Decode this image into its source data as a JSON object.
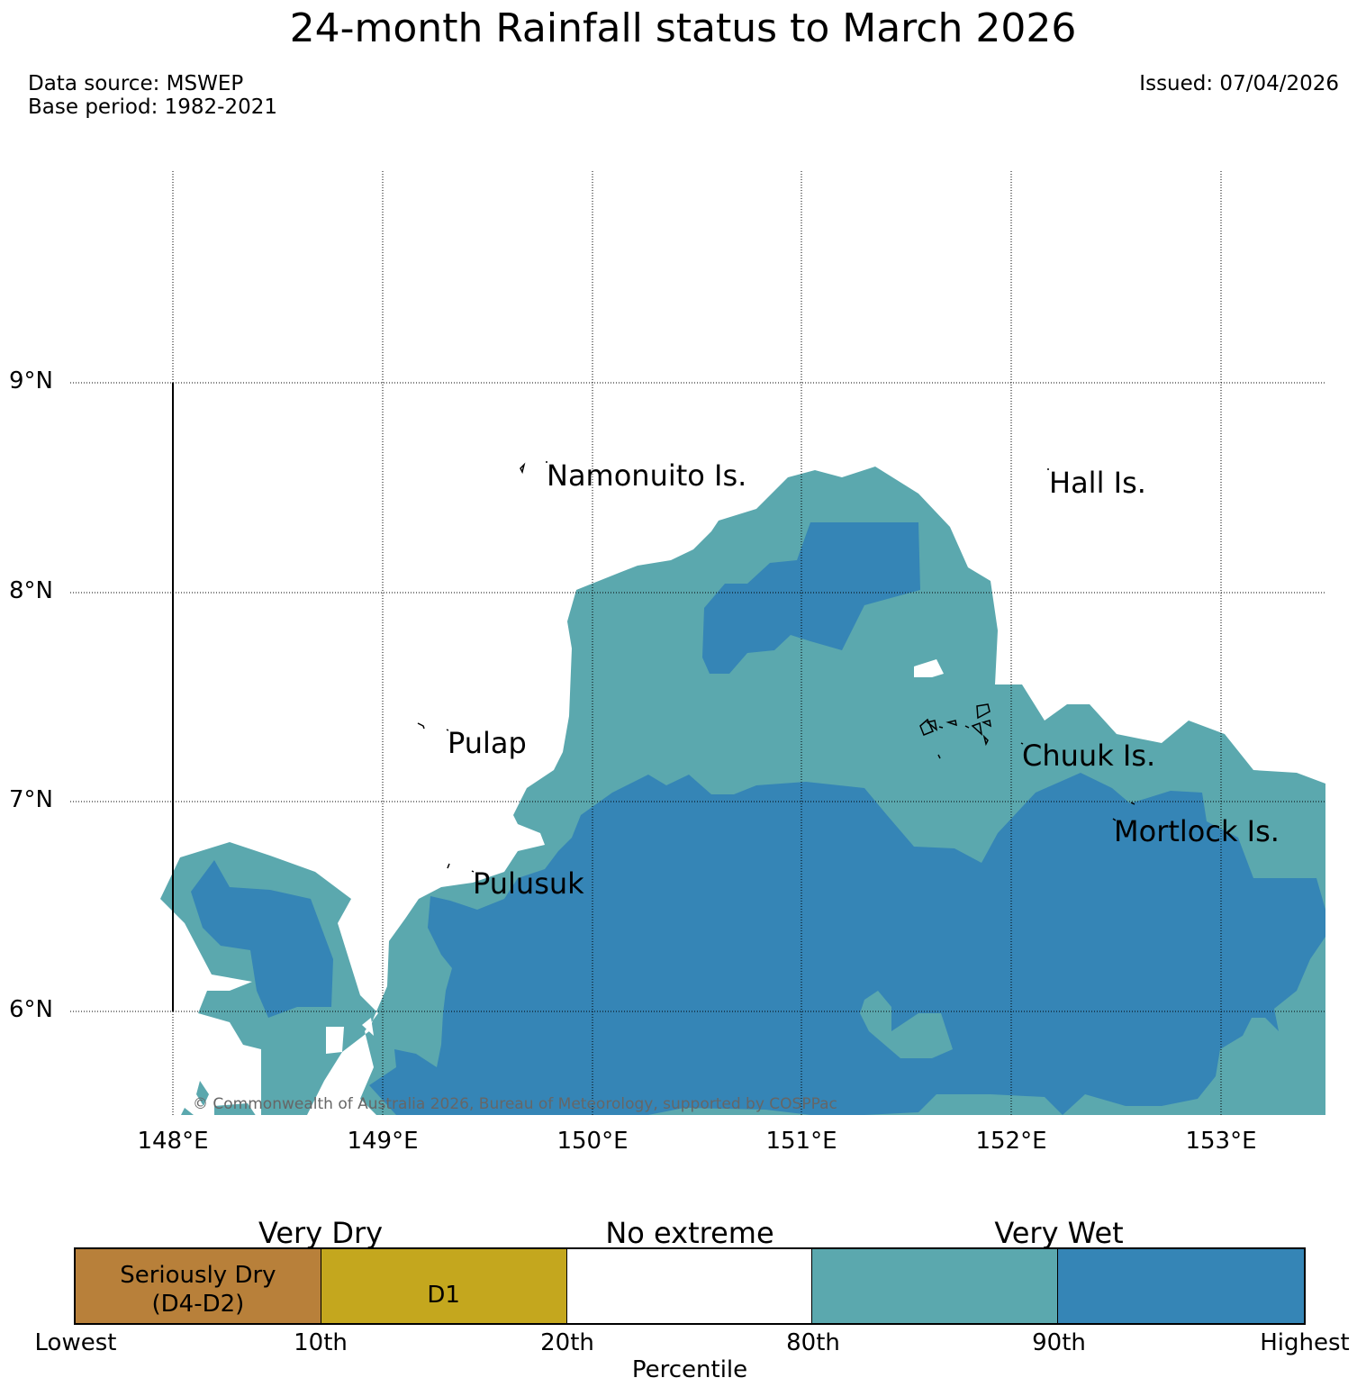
{
  "title": "24-month Rainfall status to March 2026",
  "data_source": "Data source: MSWEP",
  "base_period": "Base period: 1982-2021",
  "issued": "Issued: 07/04/2026",
  "copyright": "© Commonwealth of Australia 2026, Bureau of Meteorology, supported by COSPPac",
  "lat_labels": [
    "9°N",
    "8°N",
    "7°N",
    "6°N"
  ],
  "lon_labels": [
    "148°E",
    "149°E",
    "150°E",
    "151°E",
    "152°E",
    "153°E"
  ],
  "islands": [
    "Namonuito Is.",
    "Hall Is.",
    "Pulap",
    "Chuuk Is.",
    "Mortlock Is.",
    "Pulusuk"
  ],
  "legend": {
    "categories": [
      "Very Dry",
      "No extreme",
      "Very Wet"
    ],
    "segments": [
      {
        "label_lines": [
          "Seriously Dry",
          "(D4-D2)"
        ],
        "color": "#b8803a"
      },
      {
        "label_lines": [
          "D1"
        ],
        "color": "#c4a71e"
      },
      {
        "label_lines": [],
        "color": "#ffffff"
      },
      {
        "label_lines": [],
        "color": "#5ba8ae"
      },
      {
        "label_lines": [],
        "color": "#3585b6"
      }
    ],
    "percentiles": [
      "Lowest",
      "10th",
      "20th",
      "80th",
      "90th",
      "Highest"
    ],
    "axis_label": "Percentile"
  },
  "colors": {
    "very_wet_80_90": "#5ba8ae",
    "very_wet_90_plus": "#3585b6"
  }
}
